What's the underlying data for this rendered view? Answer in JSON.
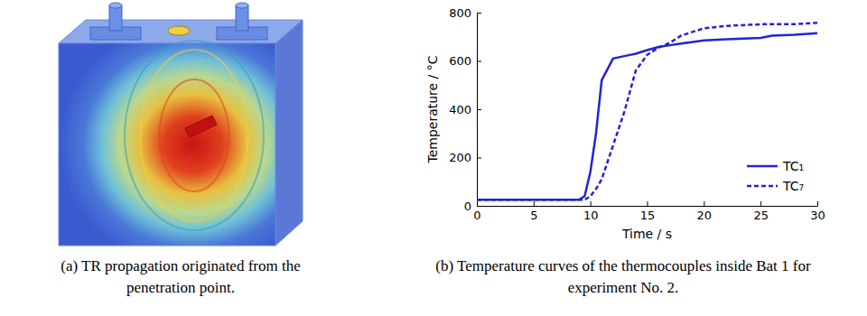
{
  "chart_data": {
    "type": "line",
    "x_label": "Time / s",
    "y_label": "Temperature / °C",
    "x": [
      0,
      9,
      9.5,
      10,
      10.5,
      11,
      12,
      13,
      14,
      15,
      16,
      17,
      18,
      20,
      22,
      25,
      26,
      28,
      30
    ],
    "series": [
      {
        "name": "TC₁",
        "color": "#2323d8",
        "line_style": "solid",
        "values": [
          25,
          25,
          40,
          140,
          300,
          520,
          610,
          620,
          630,
          645,
          658,
          665,
          672,
          685,
          690,
          695,
          705,
          708,
          715
        ]
      },
      {
        "name": "TC₇",
        "color": "#2323d8",
        "line_style": "dashed",
        "values": [
          25,
          25,
          25,
          40,
          70,
          110,
          250,
          390,
          560,
          625,
          655,
          675,
          705,
          735,
          745,
          752,
          752,
          752,
          758
        ]
      }
    ],
    "xlim": [
      0,
      30
    ],
    "xticks": [
      0,
      5,
      10,
      15,
      20,
      25,
      30
    ],
    "ylim": [
      0,
      800
    ],
    "yticks": [
      0,
      200,
      400,
      600,
      800
    ],
    "grid": false,
    "legend": "lower right"
  },
  "captions": {
    "a": "(a) TR propagation originated from the penetration point.",
    "b": "(b) Temperature curves of the thermocouples inside Bat 1 for experiment No. 2."
  }
}
